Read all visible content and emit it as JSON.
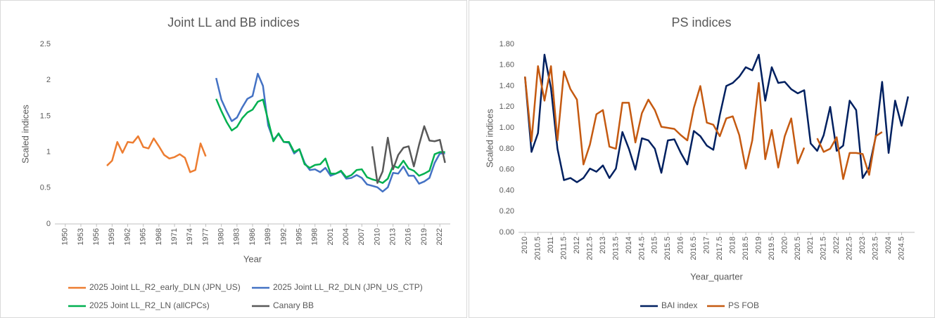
{
  "chart_data": [
    {
      "type": "line",
      "title": "Joint LL and BB indices",
      "xlabel": "Year",
      "ylabel": "Scaled indices",
      "x": [
        1958,
        1959,
        1960,
        1961,
        1962,
        1963,
        1964,
        1965,
        1966,
        1967,
        1968,
        1969,
        1970,
        1971,
        1972,
        1973,
        1974,
        1975,
        1976,
        1977,
        1978,
        1979,
        1980,
        1981,
        1982,
        1983,
        1984,
        1985,
        1986,
        1987,
        1988,
        1989,
        1990,
        1991,
        1992,
        1993,
        1994,
        1995,
        1996,
        1997,
        1998,
        1999,
        2000,
        2001,
        2002,
        2003,
        2004,
        2005,
        2006,
        2007,
        2008,
        2009,
        2010,
        2011,
        2012,
        2013,
        2014,
        2015,
        2016,
        2017,
        2018,
        2019,
        2020,
        2021,
        2022,
        2023
      ],
      "series": [
        {
          "name": "2025 Joint LL_R2_early_DLN (JPN_US)",
          "color": "#ed7d31",
          "values": [
            0.81,
            0.88,
            1.14,
            0.99,
            1.14,
            1.13,
            1.22,
            1.07,
            1.05,
            1.19,
            1.08,
            0.96,
            0.91,
            0.93,
            0.97,
            0.92,
            0.72,
            0.75,
            1.12,
            0.94,
            null,
            null,
            null,
            null,
            null,
            null,
            null,
            null,
            null,
            null,
            null,
            null,
            null,
            null,
            null,
            null,
            null,
            null,
            null,
            null,
            null,
            null,
            null,
            null,
            null,
            null,
            null,
            null,
            null,
            null,
            null,
            null,
            null,
            null,
            null,
            null,
            null,
            null,
            null,
            null,
            null,
            null,
            null,
            null,
            null,
            null
          ]
        },
        {
          "name": "2025 Joint LL_R2_DLN (JPN_US_CTP)",
          "color": "#4472c4",
          "values": [
            null,
            null,
            null,
            null,
            null,
            null,
            null,
            null,
            null,
            null,
            null,
            null,
            null,
            null,
            null,
            null,
            null,
            null,
            null,
            null,
            null,
            2.03,
            1.73,
            1.57,
            1.43,
            1.48,
            1.62,
            1.74,
            1.78,
            2.09,
            1.92,
            1.37,
            1.17,
            1.25,
            1.14,
            1.13,
            0.98,
            1.04,
            0.85,
            0.75,
            0.76,
            0.72,
            0.78,
            0.67,
            0.7,
            0.73,
            0.63,
            0.64,
            0.68,
            0.64,
            0.55,
            0.53,
            0.51,
            0.45,
            0.51,
            0.71,
            0.7,
            0.8,
            0.67,
            0.67,
            0.56,
            0.59,
            0.64,
            0.85,
            0.98,
            0.98
          ]
        },
        {
          "name": "2025 Joint LL_R2_LN (allCPCs)",
          "color": "#00b050",
          "values": [
            null,
            null,
            null,
            null,
            null,
            null,
            null,
            null,
            null,
            null,
            null,
            null,
            null,
            null,
            null,
            null,
            null,
            null,
            null,
            null,
            null,
            1.74,
            1.57,
            1.42,
            1.3,
            1.35,
            1.47,
            1.55,
            1.59,
            1.7,
            1.73,
            1.44,
            1.15,
            1.26,
            1.14,
            1.14,
            1.0,
            1.04,
            0.83,
            0.78,
            0.82,
            0.83,
            0.91,
            0.7,
            0.7,
            0.74,
            0.65,
            0.68,
            0.75,
            0.76,
            0.65,
            0.62,
            0.6,
            0.57,
            0.63,
            0.81,
            0.78,
            0.88,
            0.77,
            0.74,
            0.67,
            0.7,
            0.74,
            0.97,
            1.0,
            1.0
          ]
        },
        {
          "name": "Canary BB",
          "color": "#595959",
          "values": [
            null,
            null,
            null,
            null,
            null,
            null,
            null,
            null,
            null,
            null,
            null,
            null,
            null,
            null,
            null,
            null,
            null,
            null,
            null,
            null,
            null,
            null,
            null,
            null,
            null,
            null,
            null,
            null,
            null,
            null,
            null,
            null,
            null,
            null,
            null,
            null,
            null,
            null,
            null,
            null,
            null,
            null,
            null,
            null,
            null,
            null,
            null,
            null,
            null,
            null,
            null,
            1.08,
            0.57,
            0.73,
            1.2,
            0.76,
            0.96,
            1.06,
            1.08,
            0.8,
            1.1,
            1.36,
            1.16,
            1.15,
            1.17,
            0.85
          ]
        }
      ],
      "xlim": [
        1948,
        2024
      ],
      "xticks": [
        1950,
        1953,
        1956,
        1959,
        1962,
        1965,
        1968,
        1971,
        1974,
        1977,
        1980,
        1983,
        1986,
        1989,
        1992,
        1995,
        1998,
        2001,
        2004,
        2007,
        2010,
        2013,
        2016,
        2019,
        2022
      ],
      "ylim": [
        0,
        2.5
      ],
      "yticks": [
        0,
        0.5,
        1,
        1.5,
        2,
        2.5
      ],
      "grid": false,
      "legend": "bottom"
    },
    {
      "type": "line",
      "title": "PS indices",
      "xlabel": "Year_quarter",
      "ylabel": "Scaled indices",
      "x": [
        2010,
        2010.25,
        2010.5,
        2010.75,
        2011,
        2011.25,
        2011.5,
        2011.75,
        2012,
        2012.25,
        2012.5,
        2012.75,
        2013,
        2013.25,
        2013.5,
        2013.75,
        2014,
        2014.25,
        2014.5,
        2014.75,
        2015,
        2015.25,
        2015.5,
        2015.75,
        2016,
        2016.25,
        2016.5,
        2016.75,
        2017,
        2017.25,
        2017.5,
        2017.75,
        2018,
        2018.25,
        2018.5,
        2018.75,
        2019,
        2019.25,
        2019.5,
        2019.75,
        2020,
        2020.25,
        2020.5,
        2020.75,
        2021,
        2021.25,
        2021.5,
        2021.75,
        2022,
        2022.25,
        2022.5,
        2022.75,
        2023,
        2023.25,
        2023.5,
        2023.75,
        2024,
        2024.25,
        2024.5,
        2024.75
      ],
      "series": [
        {
          "name": "BAI index",
          "color": "#002060",
          "values": [
            1.49,
            0.77,
            0.95,
            1.7,
            1.38,
            0.8,
            0.5,
            0.52,
            0.48,
            0.52,
            0.61,
            0.58,
            0.64,
            0.52,
            0.61,
            0.96,
            0.8,
            0.6,
            0.9,
            0.88,
            0.8,
            0.57,
            0.88,
            0.89,
            0.76,
            0.65,
            0.97,
            0.92,
            0.83,
            0.79,
            1.12,
            1.4,
            1.43,
            1.49,
            1.58,
            1.55,
            1.7,
            1.26,
            1.58,
            1.43,
            1.44,
            1.37,
            1.33,
            1.36,
            0.85,
            0.78,
            0.93,
            1.2,
            0.78,
            0.83,
            1.26,
            1.17,
            0.52,
            0.62,
            0.91,
            1.44,
            0.76,
            1.26,
            1.02,
            1.3
          ]
        },
        {
          "name": "PS FOB",
          "color": "#c55a11",
          "values": [
            1.49,
            0.87,
            1.59,
            1.26,
            1.59,
            0.88,
            1.54,
            1.37,
            1.27,
            0.65,
            0.84,
            1.13,
            1.17,
            0.82,
            0.8,
            1.24,
            1.24,
            0.86,
            1.14,
            1.27,
            1.17,
            1.01,
            1.0,
            0.99,
            0.93,
            0.88,
            1.19,
            1.4,
            1.05,
            1.03,
            0.92,
            1.09,
            1.11,
            0.93,
            0.61,
            0.88,
            1.43,
            0.7,
            0.98,
            0.62,
            0.92,
            1.09,
            0.66,
            0.81,
            null,
            0.9,
            0.77,
            0.8,
            0.91,
            0.51,
            0.76,
            0.76,
            0.75,
            0.55,
            0.92,
            0.96,
            null,
            null,
            null,
            null
          ]
        }
      ],
      "xlim": [
        2009.75,
        2025
      ],
      "xticks": [
        2010,
        2010.5,
        2011,
        2011.5,
        2012,
        2012.5,
        2013,
        2013.5,
        2014,
        2014.5,
        2015,
        2015.5,
        2016,
        2016.5,
        2017,
        2017.5,
        2018,
        2018.5,
        2019,
        2019.5,
        2020,
        2020.5,
        2021,
        2021.5,
        2022,
        2022.5,
        2023,
        2023.5,
        2024,
        2024.5
      ],
      "ylim": [
        0,
        1.8
      ],
      "yticks": [
        {
          "value": 0,
          "label": "0.00"
        },
        {
          "value": 0.2,
          "label": "0.20"
        },
        {
          "value": 0.4,
          "label": "0.40"
        },
        {
          "value": 0.6,
          "label": "0.60"
        },
        {
          "value": 0.8,
          "label": "0.80"
        },
        {
          "value": 1,
          "label": "1.00"
        },
        {
          "value": 1.2,
          "label": "1.20"
        },
        {
          "value": 1.4,
          "label": "1.40"
        },
        {
          "value": 1.6,
          "label": "1.60"
        },
        {
          "value": 1.8,
          "label": "1.80"
        }
      ],
      "grid": false,
      "legend": "bottom"
    }
  ]
}
